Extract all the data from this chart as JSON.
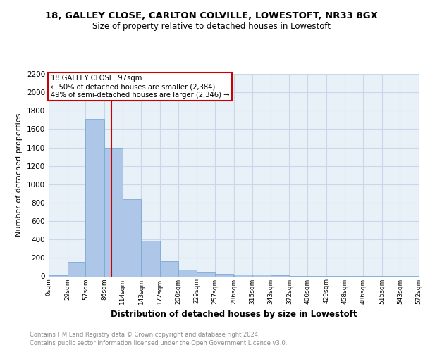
{
  "title_line1": "18, GALLEY CLOSE, CARLTON COLVILLE, LOWESTOFT, NR33 8GX",
  "title_line2": "Size of property relative to detached houses in Lowestoft",
  "xlabel": "Distribution of detached houses by size in Lowestoft",
  "ylabel": "Number of detached properties",
  "bar_edges": [
    0,
    29,
    57,
    86,
    114,
    143,
    172,
    200,
    229,
    257,
    286,
    315,
    343,
    372,
    400,
    429,
    458,
    486,
    515,
    543,
    572
  ],
  "bar_heights": [
    15,
    155,
    1710,
    1400,
    835,
    390,
    165,
    75,
    45,
    25,
    20,
    20,
    10,
    5,
    3,
    2,
    1,
    1,
    1,
    1
  ],
  "bar_color": "#aec6e8",
  "bar_edgecolor": "#7aaad4",
  "vline_x": 97,
  "vline_color": "#cc0000",
  "annotation_text": "18 GALLEY CLOSE: 97sqm\n← 50% of detached houses are smaller (2,384)\n49% of semi-detached houses are larger (2,346) →",
  "annotation_box_edgecolor": "#cc0000",
  "ylim": [
    0,
    2200
  ],
  "yticks": [
    0,
    200,
    400,
    600,
    800,
    1000,
    1200,
    1400,
    1600,
    1800,
    2000,
    2200
  ],
  "tick_labels": [
    "0sqm",
    "29sqm",
    "57sqm",
    "86sqm",
    "114sqm",
    "143sqm",
    "172sqm",
    "200sqm",
    "229sqm",
    "257sqm",
    "286sqm",
    "315sqm",
    "343sqm",
    "372sqm",
    "400sqm",
    "429sqm",
    "458sqm",
    "486sqm",
    "515sqm",
    "543sqm",
    "572sqm"
  ],
  "footer_line1": "Contains HM Land Registry data © Crown copyright and database right 2024.",
  "footer_line2": "Contains public sector information licensed under the Open Government Licence v3.0.",
  "bg_color": "#ffffff",
  "plot_bg_color": "#e8f0f8",
  "grid_color": "#c8d8e8"
}
